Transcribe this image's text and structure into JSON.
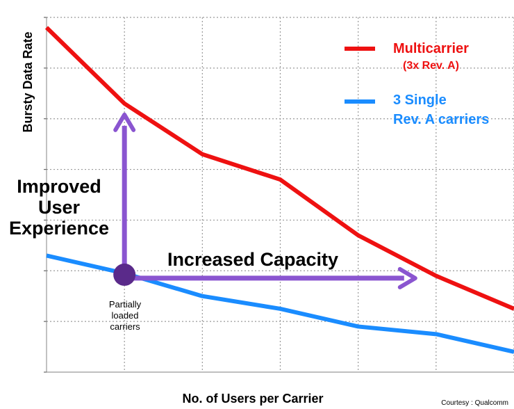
{
  "chart_data": {
    "type": "line",
    "title": "",
    "xlabel": "No. of Users per Carrier",
    "ylabel": "Bursty  Data Rate",
    "grid": true,
    "x_ticks_shown": false,
    "y_ticks_shown": false,
    "x": [
      0,
      1,
      2,
      3,
      4,
      5,
      6
    ],
    "xlim": [
      0,
      6
    ],
    "ylim": [
      0,
      7
    ],
    "series": [
      {
        "name": "Multicarrier",
        "name_sub": "(3x Rev. A)",
        "color": "#ee1111",
        "values": [
          6.8,
          5.3,
          4.3,
          3.8,
          2.7,
          1.9,
          1.25
        ]
      },
      {
        "name": "3 Single",
        "name_sub": "Rev. A carriers",
        "color": "#1a8cff",
        "values": [
          2.3,
          1.95,
          1.5,
          1.25,
          0.9,
          0.75,
          0.4
        ]
      }
    ],
    "legend_position": "top-right",
    "annotations": {
      "vertical_arrow": "Improved User Experience",
      "vertical_lines": [
        "Improved",
        "User",
        "Experience"
      ],
      "horizontal_arrow": "Increased Capacity",
      "point_label_lines": [
        "Partially",
        "loaded",
        "carriers"
      ],
      "arrow_color": "#8a55d0",
      "point_color": "#5a2a8a",
      "point_x": 1,
      "point_y": 1.95,
      "vertical_arrow_to_y": 5.3,
      "horizontal_arrow_to_x": 4.75
    },
    "credit": "Courtesy : Qualcomm"
  }
}
